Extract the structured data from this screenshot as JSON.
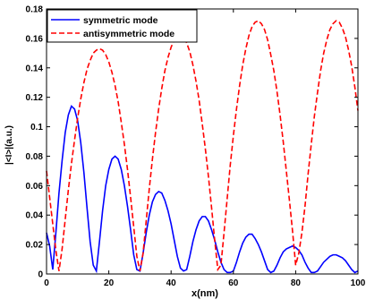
{
  "chart_data": {
    "type": "line",
    "title": "",
    "xlabel": "x(nm)",
    "ylabel": "|<I>|(a.u.)",
    "xlim": [
      0,
      100
    ],
    "ylim": [
      0,
      0.18
    ],
    "xticks": [
      0,
      20,
      40,
      60,
      80,
      100
    ],
    "yticks": [
      0,
      0.02,
      0.04,
      0.06,
      0.08,
      0.1,
      0.12,
      0.14,
      0.16,
      0.18
    ],
    "xtick_labels": [
      "0",
      "20",
      "40",
      "60",
      "80",
      "100"
    ],
    "ytick_labels": [
      "0",
      "0.02",
      "0.04",
      "0.06",
      "0.08",
      "0.1",
      "0.12",
      "0.14",
      "0.16",
      "0.18"
    ],
    "legend_position": "top-left",
    "grid": false,
    "series": [
      {
        "name": "symmetric mode",
        "color": "#0000ff",
        "style": "solid",
        "x": [
          0,
          1,
          2,
          3,
          4,
          5,
          6,
          7,
          8,
          9,
          10,
          11,
          12,
          13,
          14,
          15,
          16,
          17,
          18,
          19,
          20,
          21,
          22,
          23,
          24,
          25,
          26,
          27,
          28,
          29,
          30,
          31,
          32,
          33,
          34,
          35,
          36,
          37,
          38,
          39,
          40,
          41,
          42,
          43,
          44,
          45,
          46,
          47,
          48,
          49,
          50,
          51,
          52,
          53,
          54,
          55,
          56,
          57,
          58,
          59,
          60,
          61,
          62,
          63,
          64,
          65,
          66,
          67,
          68,
          69,
          70,
          71,
          72,
          73,
          74,
          75,
          76,
          77,
          78,
          79,
          80,
          81,
          82,
          83,
          84,
          85,
          86,
          87,
          88,
          89,
          90,
          91,
          92,
          93,
          94,
          95,
          96,
          97,
          98,
          99,
          100
        ],
        "y": [
          0.028,
          0.019,
          0.003,
          0.028,
          0.055,
          0.077,
          0.096,
          0.108,
          0.114,
          0.112,
          0.104,
          0.089,
          0.069,
          0.045,
          0.022,
          0.006,
          0.002,
          0.022,
          0.043,
          0.06,
          0.071,
          0.078,
          0.08,
          0.078,
          0.071,
          0.06,
          0.046,
          0.03,
          0.013,
          0.003,
          0.002,
          0.014,
          0.028,
          0.04,
          0.049,
          0.054,
          0.056,
          0.055,
          0.05,
          0.043,
          0.034,
          0.023,
          0.012,
          0.004,
          0.002,
          0.003,
          0.012,
          0.022,
          0.03,
          0.036,
          0.039,
          0.039,
          0.036,
          0.03,
          0.023,
          0.015,
          0.008,
          0.003,
          0.001,
          0.001,
          0.002,
          0.008,
          0.015,
          0.021,
          0.025,
          0.027,
          0.027,
          0.024,
          0.02,
          0.015,
          0.009,
          0.003,
          0.001,
          0.002,
          0.006,
          0.011,
          0.015,
          0.017,
          0.018,
          0.019,
          0.018,
          0.016,
          0.013,
          0.008,
          0.004,
          0.001,
          0.001,
          0.002,
          0.005,
          0.008,
          0.01,
          0.012,
          0.013,
          0.013,
          0.012,
          0.011,
          0.009,
          0.006,
          0.003,
          0.001,
          0.002
        ]
      },
      {
        "name": "antisymmetric mode",
        "color": "#ff0000",
        "style": "dashed",
        "x": [
          0,
          1,
          2,
          3,
          4,
          5,
          6,
          7,
          8,
          9,
          10,
          11,
          12,
          13,
          14,
          15,
          16,
          17,
          18,
          19,
          20,
          21,
          22,
          23,
          24,
          25,
          26,
          27,
          28,
          29,
          30,
          31,
          32,
          33,
          34,
          35,
          36,
          37,
          38,
          39,
          40,
          41,
          42,
          43,
          44,
          45,
          46,
          47,
          48,
          49,
          50,
          51,
          52,
          53,
          54,
          55,
          56,
          57,
          58,
          59,
          60,
          61,
          62,
          63,
          64,
          65,
          66,
          67,
          68,
          69,
          70,
          71,
          72,
          73,
          74,
          75,
          76,
          77,
          78,
          79,
          80,
          81,
          82,
          83,
          84,
          85,
          86,
          87,
          88,
          89,
          90,
          91,
          92,
          93,
          94,
          95,
          96,
          97,
          98,
          99,
          100
        ],
        "y": [
          0.07,
          0.052,
          0.034,
          0.016,
          0.002,
          0.017,
          0.037,
          0.057,
          0.075,
          0.091,
          0.106,
          0.119,
          0.13,
          0.139,
          0.145,
          0.15,
          0.152,
          0.153,
          0.152,
          0.149,
          0.144,
          0.137,
          0.128,
          0.117,
          0.103,
          0.088,
          0.071,
          0.052,
          0.032,
          0.012,
          0.002,
          0.014,
          0.036,
          0.058,
          0.078,
          0.096,
          0.112,
          0.126,
          0.138,
          0.147,
          0.154,
          0.159,
          0.162,
          0.162,
          0.161,
          0.157,
          0.151,
          0.142,
          0.131,
          0.118,
          0.102,
          0.085,
          0.066,
          0.045,
          0.023,
          0.003,
          0.006,
          0.028,
          0.051,
          0.074,
          0.094,
          0.112,
          0.128,
          0.142,
          0.153,
          0.162,
          0.168,
          0.171,
          0.172,
          0.17,
          0.166,
          0.159,
          0.149,
          0.138,
          0.124,
          0.108,
          0.09,
          0.07,
          0.05,
          0.029,
          0.006,
          0.014,
          0.028,
          0.046,
          0.068,
          0.088,
          0.107,
          0.123,
          0.138,
          0.15,
          0.159,
          0.166,
          0.17,
          0.172,
          0.171,
          0.167,
          0.161,
          0.152,
          0.141,
          0.127,
          0.111
        ]
      }
    ]
  }
}
